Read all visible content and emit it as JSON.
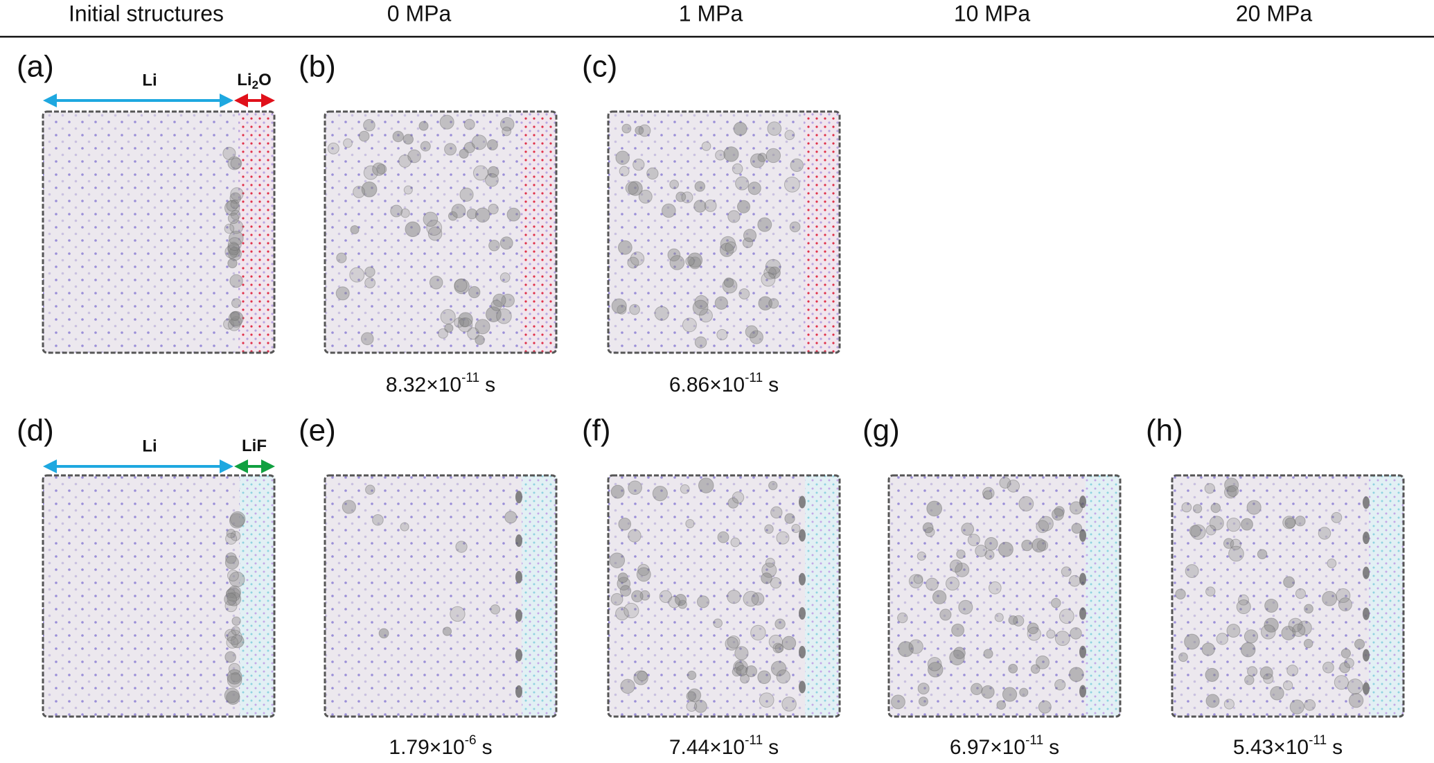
{
  "header": {
    "columns": [
      "Initial structures",
      "0 MPa",
      "1 MPa",
      "10 MPa",
      "20 MPa"
    ]
  },
  "interfaces": [
    {
      "left": "Li",
      "right_main": "Li",
      "right_sub": "2",
      "right_tail": "O"
    },
    {
      "left": "Li",
      "right_main": "LiF"
    }
  ],
  "panels": [
    {
      "label": "(a)"
    },
    {
      "label": "(b)",
      "time": {
        "mantissa": "8.32×10",
        "exponent": "-11",
        "unit": "s"
      }
    },
    {
      "label": "(c)",
      "time": {
        "mantissa": "6.86×10",
        "exponent": "-11",
        "unit": "s"
      }
    },
    {
      "label": "(d)"
    },
    {
      "label": "(e)",
      "time": {
        "mantissa": "1.79×10",
        "exponent": "-6",
        "unit": "s"
      }
    },
    {
      "label": "(f)",
      "time": {
        "mantissa": "7.44×10",
        "exponent": "-11",
        "unit": "s"
      }
    },
    {
      "label": "(g)",
      "time": {
        "mantissa": "6.97×10",
        "exponent": "-11",
        "unit": "s"
      }
    },
    {
      "label": "(h)",
      "time": {
        "mantissa": "5.43×10",
        "exponent": "-11",
        "unit": "s"
      }
    }
  ]
}
